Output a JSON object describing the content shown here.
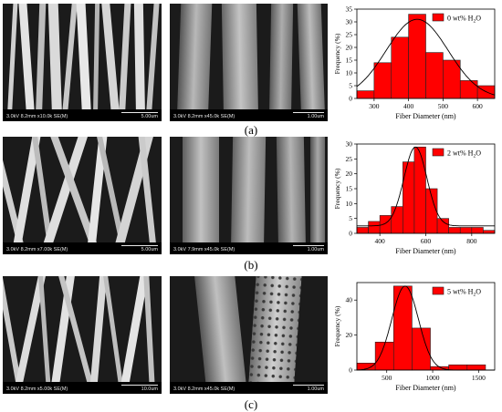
{
  "panel_labels": [
    "(a)",
    "(b)",
    "(c)"
  ],
  "sem": [
    {
      "info": "3.0kV 8.2mm x10.0k SE(M)",
      "scale": "5.00um"
    },
    {
      "info": "3.0kV 8.2mm x45.0k SE(M)",
      "scale": "1.00um"
    },
    {
      "info": "3.0kV 8.2mm x7.00k SE(M)",
      "scale": "5.00um"
    },
    {
      "info": "3.0kV 7.9mm x45.0k SE(M)",
      "scale": "1.00um"
    },
    {
      "info": "3.0kV 8.2mm x5.00k SE(M)",
      "scale": "10.0um"
    },
    {
      "info": "3.0kV 8.2mm x45.0k SE(M)",
      "scale": "1.00um"
    }
  ],
  "colors": {
    "bar": "#ff0000",
    "bar_edge": "#222222",
    "curve": "#000000"
  },
  "chart_data": [
    {
      "type": "bar",
      "legend": "0 wt% H",
      "legend_sub": "2",
      "legend_tail": "O",
      "xlabel": "Fiber Diameter (nm)",
      "ylabel": "Frequency (%)",
      "x": [
        275,
        325,
        375,
        425,
        475,
        525,
        575,
        625
      ],
      "values": [
        3,
        14,
        24,
        33,
        18,
        15,
        7,
        5
      ],
      "bin_width": 50,
      "xlim": [
        250,
        650
      ],
      "ylim": [
        0,
        35
      ],
      "xticks": [
        300,
        400,
        500,
        600
      ],
      "yticks": [
        0,
        5,
        10,
        15,
        20,
        25,
        30,
        35
      ],
      "fit": {
        "mean": 425,
        "sd": 90,
        "peak": 31
      }
    },
    {
      "type": "bar",
      "legend": "2 wt% H",
      "legend_sub": "2",
      "legend_tail": "O",
      "xlabel": "Fiber Diameter (nm)",
      "ylabel": "Frequency (%)",
      "x": [
        325,
        375,
        425,
        475,
        525,
        575,
        625,
        675,
        725,
        775,
        825,
        875
      ],
      "values": [
        2,
        4,
        6,
        9,
        24,
        29,
        15,
        5,
        2,
        2,
        2,
        1
      ],
      "bin_width": 50,
      "xlim": [
        300,
        900
      ],
      "ylim": [
        0,
        30
      ],
      "xticks": [
        400,
        600,
        800
      ],
      "yticks": [
        0,
        5,
        10,
        15,
        20,
        25,
        30
      ],
      "fit": {
        "mean": 555,
        "sd": 50,
        "peak": 29,
        "base": 2.5
      }
    },
    {
      "type": "bar",
      "legend": "5 wt% H",
      "legend_sub": "2",
      "legend_tail": "O",
      "xlabel": "Fiber Diameter (nm)",
      "ylabel": "Frequency (%)",
      "x": [
        275,
        475,
        675,
        875,
        1075,
        1275,
        1475
      ],
      "values": [
        4,
        16,
        48,
        24,
        2,
        3,
        3
      ],
      "bin_width": 200,
      "xlim": [
        175,
        1675
      ],
      "ylim": [
        0,
        50
      ],
      "xticks": [
        500,
        1000,
        1500
      ],
      "yticks": [
        0,
        20,
        40
      ],
      "fit": {
        "mean": 700,
        "sd": 145,
        "peak": 48
      }
    }
  ]
}
